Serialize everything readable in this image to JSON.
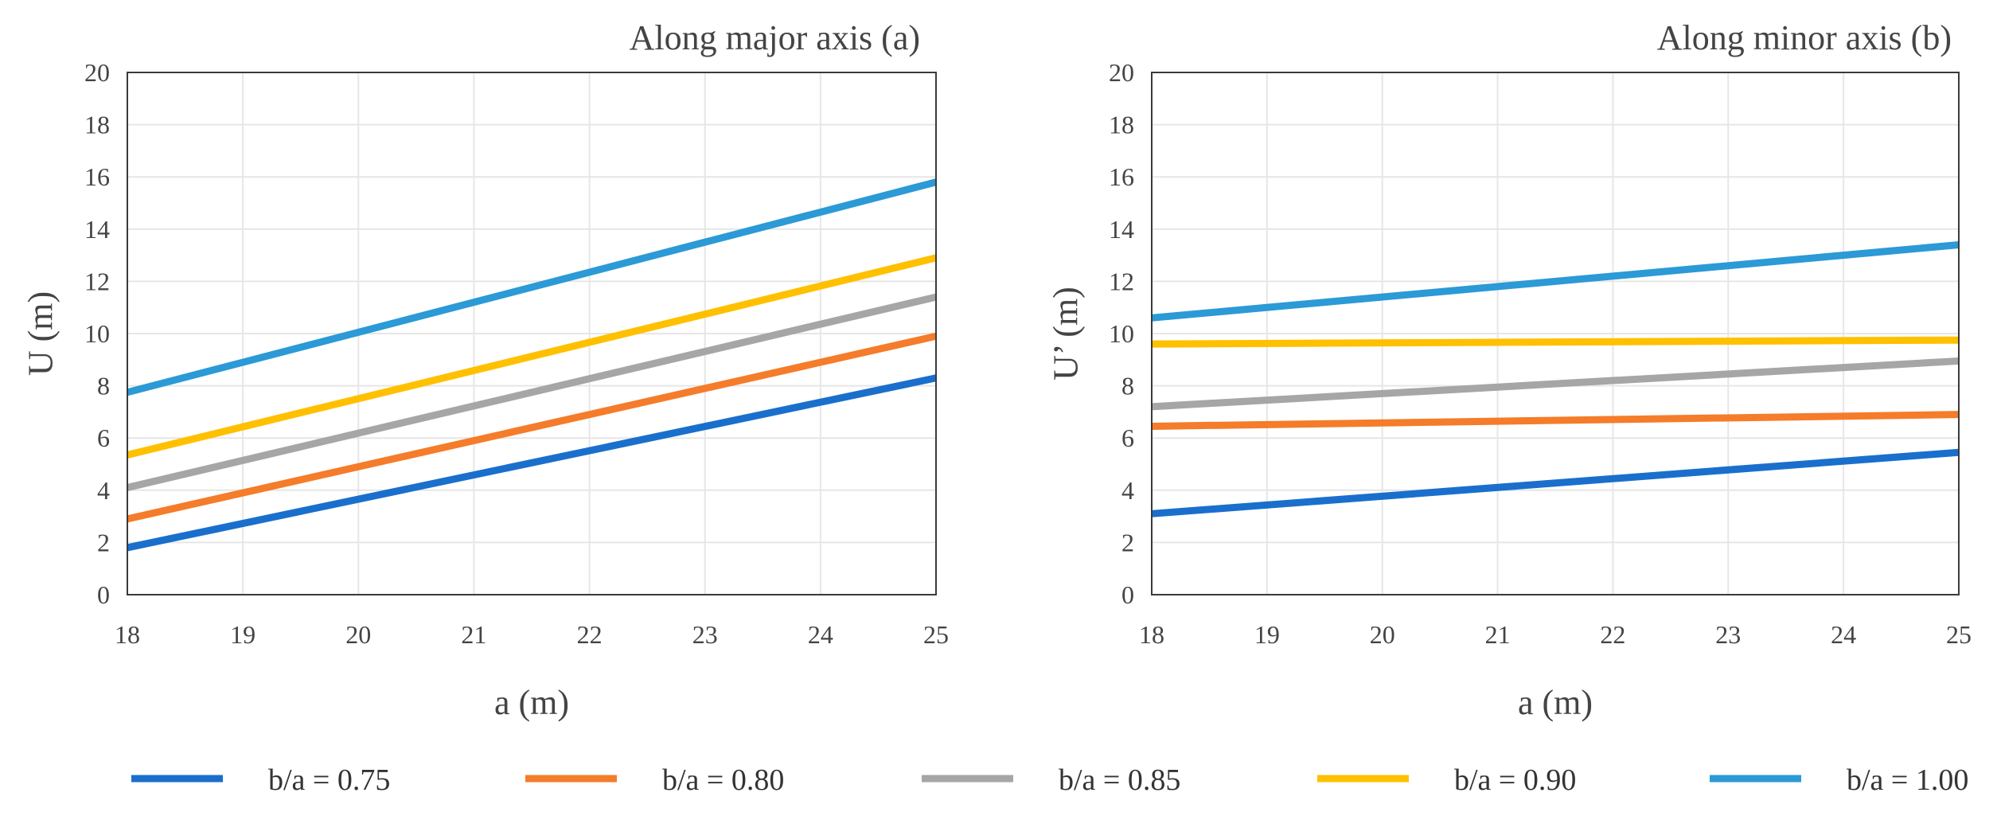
{
  "chart_data": [
    {
      "type": "line",
      "title": "Along major axis (a)",
      "xlabel": "a (m)",
      "ylabel": "U (m)",
      "xlim": [
        18,
        25
      ],
      "ylim": [
        0,
        20
      ],
      "xticks": [
        "18",
        "19",
        "20",
        "21",
        "22",
        "23",
        "24",
        "25"
      ],
      "yticks": [
        "0",
        "2",
        "4",
        "6",
        "8",
        "10",
        "12",
        "14",
        "16",
        "18",
        "20"
      ],
      "grid": true,
      "x": [
        18,
        25
      ],
      "series": [
        {
          "name": "b/a = 0.75",
          "color": "#1a6fcc",
          "values": [
            1.8,
            8.3
          ]
        },
        {
          "name": "b/a = 0.80",
          "color": "#f57c2a",
          "values": [
            2.9,
            9.9
          ]
        },
        {
          "name": "b/a = 0.85",
          "color": "#a6a6a6",
          "values": [
            4.1,
            11.4
          ]
        },
        {
          "name": "b/a = 0.90",
          "color": "#ffc000",
          "values": [
            5.35,
            12.9
          ]
        },
        {
          "name": "b/a = 1.00",
          "color": "#2b9ad6",
          "values": [
            7.75,
            15.8
          ]
        }
      ]
    },
    {
      "type": "line",
      "title": "Along minor axis (b)",
      "xlabel": "a (m)",
      "ylabel": "U’ (m)",
      "xlim": [
        18,
        25
      ],
      "ylim": [
        0,
        20
      ],
      "xticks": [
        "18",
        "19",
        "20",
        "21",
        "22",
        "23",
        "24",
        "25"
      ],
      "yticks": [
        "0",
        "2",
        "4",
        "6",
        "8",
        "10",
        "12",
        "14",
        "16",
        "18",
        "20"
      ],
      "grid": true,
      "x": [
        18,
        25
      ],
      "series": [
        {
          "name": "b/a = 0.75",
          "color": "#1a6fcc",
          "values": [
            3.1,
            5.45
          ]
        },
        {
          "name": "b/a = 0.80",
          "color": "#f57c2a",
          "values": [
            6.45,
            6.9
          ]
        },
        {
          "name": "b/a = 0.85",
          "color": "#a6a6a6",
          "values": [
            7.2,
            8.95
          ]
        },
        {
          "name": "b/a = 0.90",
          "color": "#ffc000",
          "values": [
            9.6,
            9.75
          ]
        },
        {
          "name": "b/a = 1.00",
          "color": "#2b9ad6",
          "values": [
            10.6,
            13.4
          ]
        }
      ]
    }
  ],
  "legend": {
    "position": "bottom",
    "items": [
      {
        "label": "b/a = 0.75",
        "color": "#1a6fcc"
      },
      {
        "label": "b/a = 0.80",
        "color": "#f57c2a"
      },
      {
        "label": "b/a = 0.85",
        "color": "#a6a6a6"
      },
      {
        "label": "b/a = 0.90",
        "color": "#ffc000"
      },
      {
        "label": "b/a = 1.00",
        "color": "#2b9ad6"
      }
    ]
  }
}
